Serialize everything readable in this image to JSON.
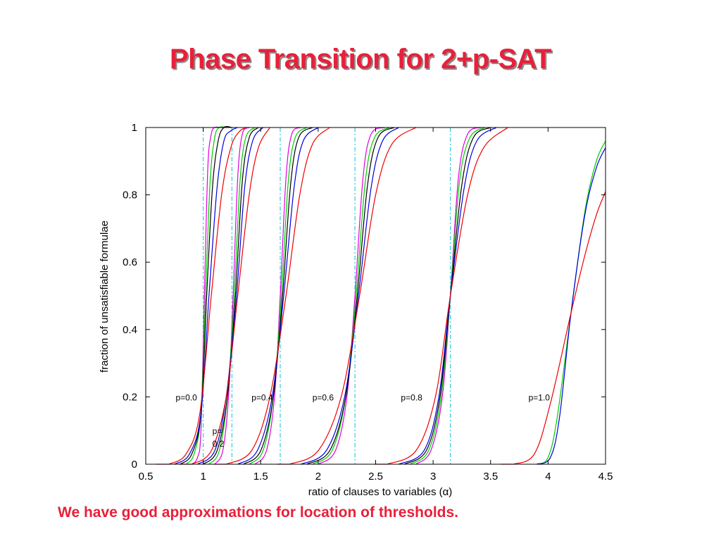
{
  "slide": {
    "title": "Phase Transition for 2+p-SAT",
    "footer": "We have good approximations for location of thresholds.",
    "title_color": "#e8203a",
    "footer_color": "#e8203a"
  },
  "chart_data": {
    "type": "line",
    "xlabel": "ratio of clauses to variables (α)",
    "ylabel": "fraction of unsatisfiable formulae",
    "xlim": [
      0.5,
      4.5
    ],
    "ylim": [
      0,
      1
    ],
    "xticks": [
      0.5,
      1,
      1.5,
      2,
      2.5,
      3,
      3.5,
      4,
      4.5
    ],
    "xtick_labels": [
      "0.5",
      "1",
      "1.5",
      "2",
      "2.5",
      "3",
      "3.5",
      "4",
      "4.5"
    ],
    "yticks": [
      0,
      0.2,
      0.4,
      0.6,
      0.8,
      1
    ],
    "ytick_labels": [
      "0",
      "0.2",
      "0.4",
      "0.6",
      "0.8",
      "1"
    ],
    "grid": false,
    "threshold_lines": [
      1.0,
      1.25,
      1.67,
      2.32,
      3.15
    ],
    "threshold_line_color": "#33ccdd",
    "series_colors": [
      "#e000e0",
      "#00cc00",
      "#000000",
      "#0000dd",
      "#ee0000"
    ],
    "curve_groups": [
      {
        "label": "p=0.0",
        "label_x": 0.76,
        "label_y": 0.2,
        "threshold": 1.0,
        "curves": [
          {
            "color": "#e000e0",
            "x": [
              0.9,
              0.95,
              0.98,
              1.01,
              1.04,
              1.07,
              1.1,
              1.15,
              1.2
            ],
            "y": [
              0.0,
              0.02,
              0.1,
              0.5,
              0.88,
              0.98,
              1.0,
              1.0,
              1.0
            ]
          },
          {
            "color": "#00cc00",
            "x": [
              0.85,
              0.92,
              0.98,
              1.02,
              1.06,
              1.1,
              1.14,
              1.2
            ],
            "y": [
              0.0,
              0.03,
              0.15,
              0.5,
              0.84,
              0.97,
              1.0,
              1.0
            ]
          },
          {
            "color": "#000000",
            "x": [
              0.8,
              0.9,
              0.98,
              1.03,
              1.08,
              1.13,
              1.18,
              1.25
            ],
            "y": [
              0.0,
              0.03,
              0.15,
              0.5,
              0.82,
              0.96,
              1.0,
              1.0
            ]
          },
          {
            "color": "#0000dd",
            "x": [
              0.75,
              0.88,
              0.98,
              1.05,
              1.12,
              1.18,
              1.24,
              1.3
            ],
            "y": [
              0.0,
              0.03,
              0.15,
              0.5,
              0.82,
              0.96,
              0.99,
              1.0
            ]
          },
          {
            "color": "#ee0000",
            "x": [
              0.7,
              0.85,
              0.97,
              1.07,
              1.16,
              1.24,
              1.32,
              1.4
            ],
            "y": [
              0.0,
              0.03,
              0.15,
              0.5,
              0.8,
              0.94,
              0.99,
              1.0
            ]
          }
        ]
      },
      {
        "label": "p=0.2",
        "label_x": 1.08,
        "label_y": 0.09,
        "threshold": 1.25,
        "curves": [
          {
            "color": "#e000e0",
            "x": [
              1.1,
              1.17,
              1.22,
              1.26,
              1.3,
              1.34,
              1.4
            ],
            "y": [
              0.0,
              0.04,
              0.2,
              0.5,
              0.85,
              0.98,
              1.0
            ]
          },
          {
            "color": "#00cc00",
            "x": [
              1.05,
              1.14,
              1.21,
              1.27,
              1.32,
              1.37,
              1.45
            ],
            "y": [
              0.0,
              0.04,
              0.2,
              0.5,
              0.84,
              0.97,
              1.0
            ]
          },
          {
            "color": "#000000",
            "x": [
              1.0,
              1.12,
              1.21,
              1.28,
              1.34,
              1.4,
              1.48
            ],
            "y": [
              0.0,
              0.04,
              0.2,
              0.5,
              0.84,
              0.97,
              1.0
            ]
          },
          {
            "color": "#0000dd",
            "x": [
              0.95,
              1.1,
              1.2,
              1.29,
              1.36,
              1.43,
              1.52
            ],
            "y": [
              0.0,
              0.04,
              0.2,
              0.5,
              0.82,
              0.96,
              1.0
            ]
          },
          {
            "color": "#ee0000",
            "x": [
              0.9,
              1.07,
              1.2,
              1.3,
              1.4,
              1.48,
              1.58
            ],
            "y": [
              0.0,
              0.04,
              0.2,
              0.5,
              0.8,
              0.94,
              1.0
            ]
          }
        ]
      },
      {
        "label": "p=0.4",
        "label_x": 1.42,
        "label_y": 0.2,
        "threshold": 1.67,
        "curves": [
          {
            "color": "#e000e0",
            "x": [
              1.45,
              1.55,
              1.62,
              1.67,
              1.72,
              1.77,
              1.85
            ],
            "y": [
              0.0,
              0.04,
              0.2,
              0.5,
              0.85,
              0.98,
              1.0
            ]
          },
          {
            "color": "#00cc00",
            "x": [
              1.4,
              1.52,
              1.61,
              1.68,
              1.74,
              1.8,
              1.9
            ],
            "y": [
              0.0,
              0.04,
              0.2,
              0.5,
              0.84,
              0.97,
              1.0
            ]
          },
          {
            "color": "#000000",
            "x": [
              1.35,
              1.5,
              1.61,
              1.69,
              1.76,
              1.83,
              1.95
            ],
            "y": [
              0.0,
              0.04,
              0.2,
              0.5,
              0.83,
              0.97,
              1.0
            ]
          },
          {
            "color": "#0000dd",
            "x": [
              1.3,
              1.47,
              1.6,
              1.7,
              1.79,
              1.87,
              2.0
            ],
            "y": [
              0.0,
              0.04,
              0.2,
              0.5,
              0.82,
              0.96,
              1.0
            ]
          },
          {
            "color": "#ee0000",
            "x": [
              1.2,
              1.42,
              1.58,
              1.72,
              1.84,
              1.95,
              2.1
            ],
            "y": [
              0.0,
              0.04,
              0.2,
              0.5,
              0.8,
              0.95,
              1.0
            ]
          }
        ]
      },
      {
        "label": "p=0.6",
        "label_x": 1.95,
        "label_y": 0.2,
        "threshold": 2.32,
        "curves": [
          {
            "color": "#e000e0",
            "x": [
              2.0,
              2.15,
              2.25,
              2.32,
              2.39,
              2.46,
              2.58
            ],
            "y": [
              0.0,
              0.04,
              0.2,
              0.5,
              0.85,
              0.98,
              1.0
            ]
          },
          {
            "color": "#00cc00",
            "x": [
              1.95,
              2.12,
              2.24,
              2.33,
              2.41,
              2.49,
              2.62
            ],
            "y": [
              0.0,
              0.04,
              0.2,
              0.5,
              0.84,
              0.97,
              1.0
            ]
          },
          {
            "color": "#000000",
            "x": [
              1.9,
              2.1,
              2.24,
              2.34,
              2.43,
              2.52,
              2.66
            ],
            "y": [
              0.0,
              0.04,
              0.2,
              0.5,
              0.83,
              0.97,
              1.0
            ]
          },
          {
            "color": "#0000dd",
            "x": [
              1.85,
              2.07,
              2.23,
              2.35,
              2.46,
              2.56,
              2.7
            ],
            "y": [
              0.0,
              0.04,
              0.2,
              0.5,
              0.82,
              0.96,
              1.0
            ]
          },
          {
            "color": "#ee0000",
            "x": [
              1.75,
              2.0,
              2.2,
              2.36,
              2.5,
              2.64,
              2.85
            ],
            "y": [
              0.0,
              0.04,
              0.2,
              0.5,
              0.8,
              0.95,
              1.0
            ]
          }
        ]
      },
      {
        "label": "p=0.8",
        "label_x": 2.72,
        "label_y": 0.2,
        "threshold": 3.15,
        "curves": [
          {
            "color": "#e000e0",
            "x": [
              2.85,
              2.98,
              3.08,
              3.15,
              3.22,
              3.3,
              3.42
            ],
            "y": [
              0.0,
              0.04,
              0.2,
              0.5,
              0.85,
              0.98,
              1.0
            ]
          },
          {
            "color": "#00cc00",
            "x": [
              2.8,
              2.96,
              3.07,
              3.15,
              3.23,
              3.32,
              3.45
            ],
            "y": [
              0.0,
              0.04,
              0.2,
              0.5,
              0.84,
              0.97,
              1.0
            ]
          },
          {
            "color": "#000000",
            "x": [
              2.75,
              2.94,
              3.06,
              3.15,
              3.25,
              3.35,
              3.5
            ],
            "y": [
              0.0,
              0.04,
              0.2,
              0.5,
              0.83,
              0.97,
              1.0
            ]
          },
          {
            "color": "#0000dd",
            "x": [
              2.7,
              2.92,
              3.05,
              3.15,
              3.27,
              3.38,
              3.55
            ],
            "y": [
              0.0,
              0.04,
              0.2,
              0.5,
              0.82,
              0.96,
              1.0
            ]
          },
          {
            "color": "#ee0000",
            "x": [
              2.6,
              2.85,
              3.02,
              3.15,
              3.3,
              3.44,
              3.65
            ],
            "y": [
              0.0,
              0.04,
              0.2,
              0.5,
              0.8,
              0.94,
              1.0
            ]
          }
        ]
      },
      {
        "label": "p=1.0",
        "label_x": 3.83,
        "label_y": 0.2,
        "threshold": 4.2,
        "curves": [
          {
            "color": "#00cc00",
            "x": [
              3.9,
              4.0,
              4.08,
              4.2,
              4.32,
              4.42,
              4.5
            ],
            "y": [
              0.0,
              0.02,
              0.14,
              0.45,
              0.75,
              0.9,
              0.96
            ]
          },
          {
            "color": "#0000dd",
            "x": [
              3.9,
              4.02,
              4.1,
              4.2,
              4.32,
              4.42,
              4.5
            ],
            "y": [
              0.0,
              0.02,
              0.14,
              0.45,
              0.74,
              0.88,
              0.94
            ]
          },
          {
            "color": "#ee0000",
            "x": [
              3.7,
              3.88,
              4.02,
              4.2,
              4.32,
              4.42,
              4.5
            ],
            "y": [
              0.0,
              0.03,
              0.18,
              0.45,
              0.62,
              0.74,
              0.81
            ]
          }
        ]
      }
    ]
  }
}
